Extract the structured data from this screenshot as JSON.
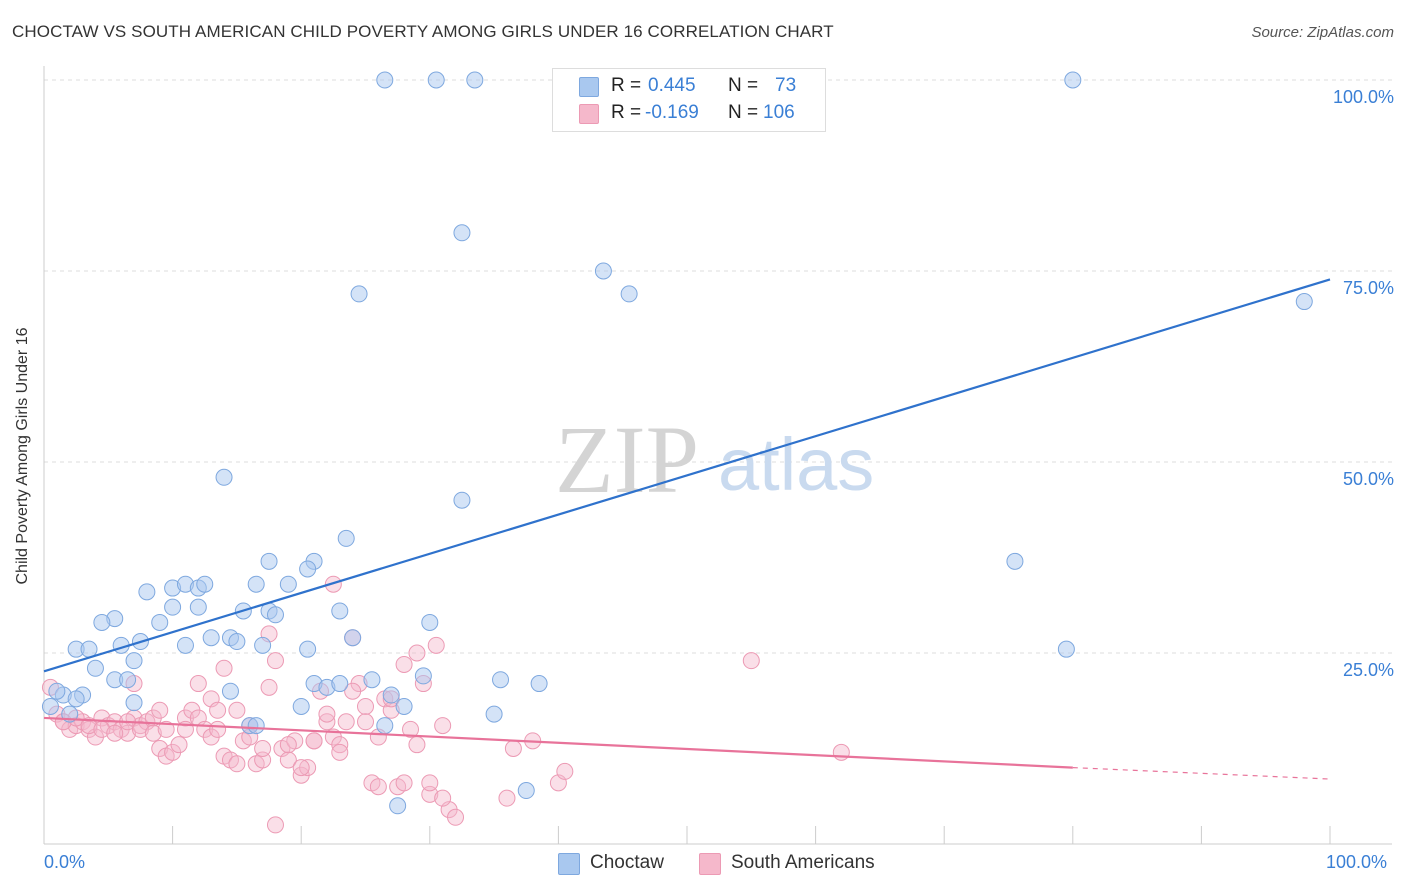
{
  "title": "CHOCTAW VS SOUTH AMERICAN CHILD POVERTY AMONG GIRLS UNDER 16 CORRELATION CHART",
  "source": "Source: ZipAtlas.com",
  "watermark": {
    "zip": "ZIP",
    "atlas": "atlas"
  },
  "colors": {
    "choctaw_fill": "#a9c8ef",
    "choctaw_stroke": "#7ea8df",
    "choctaw_line": "#2f72cc",
    "south_fill": "#f5b8cb",
    "south_stroke": "#ec9ab4",
    "south_line": "#e8739a",
    "tick_text": "#3a7fd5",
    "grid": "#dddddd"
  },
  "stats": [
    {
      "r_label": "R =",
      "r_value": "0.445",
      "n_label": "N =",
      "n_value": "73"
    },
    {
      "r_label": "R =",
      "r_value": "-0.169",
      "n_label": "N =",
      "n_value": "106"
    }
  ],
  "legend": [
    "Choctaw",
    "South Americans"
  ],
  "y_ticks": [
    "100.0%",
    "75.0%",
    "50.0%",
    "25.0%"
  ],
  "x_ticks": [
    "0.0%",
    "100.0%"
  ],
  "chart_data": {
    "type": "scatter",
    "title": "CHOCTAW VS SOUTH AMERICAN CHILD POVERTY AMONG GIRLS UNDER 16 CORRELATION CHART",
    "xlabel": "",
    "ylabel": "Child Poverty Among Girls Under 16",
    "xlim": [
      0,
      100
    ],
    "ylim": [
      0,
      100
    ],
    "grid": true,
    "legend_placement": "bottom",
    "series": [
      {
        "name": "Choctaw",
        "r": 0.445,
        "n": 73,
        "trendline": {
          "x": [
            0,
            100
          ],
          "y": [
            22.6,
            73.9
          ]
        },
        "points": [
          [
            26.5,
            100
          ],
          [
            30.5,
            100
          ],
          [
            33.5,
            100
          ],
          [
            80,
            100
          ],
          [
            32.5,
            80
          ],
          [
            43.5,
            75
          ],
          [
            45.5,
            72
          ],
          [
            24.5,
            72
          ],
          [
            98,
            71
          ],
          [
            14,
            48
          ],
          [
            32.5,
            45
          ],
          [
            23.5,
            40
          ],
          [
            75.5,
            37
          ],
          [
            17.5,
            37
          ],
          [
            21,
            37
          ],
          [
            20.5,
            36
          ],
          [
            8,
            33
          ],
          [
            10,
            33.5
          ],
          [
            11,
            34
          ],
          [
            12,
            33.5
          ],
          [
            12.5,
            34
          ],
          [
            16.5,
            34
          ],
          [
            19,
            34
          ],
          [
            10,
            31
          ],
          [
            12,
            31
          ],
          [
            15.5,
            30.5
          ],
          [
            17.5,
            30.5
          ],
          [
            23,
            30.5
          ],
          [
            18,
            30
          ],
          [
            5.5,
            29.5
          ],
          [
            4.5,
            29
          ],
          [
            9,
            29
          ],
          [
            30,
            29
          ],
          [
            13,
            27
          ],
          [
            14.5,
            27
          ],
          [
            7.5,
            26.5
          ],
          [
            6,
            26
          ],
          [
            17,
            26
          ],
          [
            2.5,
            25.5
          ],
          [
            3.5,
            25.5
          ],
          [
            11,
            26
          ],
          [
            15,
            26.5
          ],
          [
            20.5,
            25.5
          ],
          [
            24,
            27
          ],
          [
            79.5,
            25.5
          ],
          [
            7,
            24
          ],
          [
            4,
            23
          ],
          [
            5.5,
            21.5
          ],
          [
            6.5,
            21.5
          ],
          [
            3,
            19.5
          ],
          [
            1.5,
            19.5
          ],
          [
            2.5,
            19
          ],
          [
            14.5,
            20
          ],
          [
            7,
            18.5
          ],
          [
            21,
            21
          ],
          [
            22,
            20.5
          ],
          [
            25.5,
            21.5
          ],
          [
            27,
            19.5
          ],
          [
            29.5,
            22
          ],
          [
            35.5,
            21.5
          ],
          [
            38.5,
            21
          ],
          [
            20,
            18
          ],
          [
            28,
            18
          ],
          [
            26.5,
            15.5
          ],
          [
            35,
            17
          ],
          [
            16,
            15.5
          ],
          [
            0.5,
            18
          ],
          [
            1,
            20
          ],
          [
            37.5,
            7
          ],
          [
            27.5,
            5
          ],
          [
            23,
            21
          ],
          [
            16.5,
            15.5
          ],
          [
            2,
            17
          ]
        ]
      },
      {
        "name": "South Americans",
        "r": -0.169,
        "n": 106,
        "trendline": {
          "x": [
            0,
            80
          ],
          "y": [
            16.5,
            10.0
          ]
        },
        "trendline_dashed": {
          "x": [
            80,
            100
          ],
          "y": [
            10.0,
            8.5
          ]
        },
        "points": [
          [
            0.5,
            20.5
          ],
          [
            1,
            17
          ],
          [
            1.5,
            16
          ],
          [
            2,
            15
          ],
          [
            2.5,
            15.5
          ],
          [
            3,
            16
          ],
          [
            3.5,
            15
          ],
          [
            4,
            14
          ],
          [
            4.5,
            16.5
          ],
          [
            5,
            15.5
          ],
          [
            5.5,
            16
          ],
          [
            6,
            15
          ],
          [
            6.5,
            14.5
          ],
          [
            7,
            16.5
          ],
          [
            7.5,
            15.5
          ],
          [
            8,
            16
          ],
          [
            8.5,
            16.5
          ],
          [
            9,
            12.5
          ],
          [
            9.5,
            11.5
          ],
          [
            10,
            12
          ],
          [
            10.5,
            13
          ],
          [
            11,
            16.5
          ],
          [
            11.5,
            17.5
          ],
          [
            12,
            16.5
          ],
          [
            12.5,
            15
          ],
          [
            13,
            14
          ],
          [
            13.5,
            15
          ],
          [
            14,
            11.5
          ],
          [
            14.5,
            11
          ],
          [
            15,
            10.5
          ],
          [
            15.5,
            13.5
          ],
          [
            16,
            15.5
          ],
          [
            16.5,
            10.5
          ],
          [
            17,
            11
          ],
          [
            17.5,
            20.5
          ],
          [
            18,
            24
          ],
          [
            18.5,
            12.5
          ],
          [
            19,
            11
          ],
          [
            19.5,
            13.5
          ],
          [
            20,
            9
          ],
          [
            20.5,
            10
          ],
          [
            21,
            13.5
          ],
          [
            21.5,
            20
          ],
          [
            22,
            16
          ],
          [
            22.5,
            14
          ],
          [
            23,
            13
          ],
          [
            23.5,
            16
          ],
          [
            24,
            27
          ],
          [
            24.5,
            21
          ],
          [
            25,
            18
          ],
          [
            25.5,
            8
          ],
          [
            26,
            7.5
          ],
          [
            26.5,
            19
          ],
          [
            27,
            17.5
          ],
          [
            27.5,
            7.5
          ],
          [
            28,
            23.5
          ],
          [
            28.5,
            15
          ],
          [
            29,
            25
          ],
          [
            29.5,
            21
          ],
          [
            30,
            6.5
          ],
          [
            30.5,
            26
          ],
          [
            31,
            15.5
          ],
          [
            31.5,
            4.5
          ],
          [
            32,
            3.5
          ],
          [
            36,
            6
          ],
          [
            36.5,
            12.5
          ],
          [
            38,
            13.5
          ],
          [
            40,
            8
          ],
          [
            40.5,
            9.5
          ],
          [
            55,
            24
          ],
          [
            62,
            12
          ],
          [
            1.5,
            16
          ],
          [
            2.5,
            16.5
          ],
          [
            3.5,
            15.5
          ],
          [
            4.5,
            15
          ],
          [
            5.5,
            14.5
          ],
          [
            6.5,
            16
          ],
          [
            7.5,
            15
          ],
          [
            8.5,
            14.5
          ],
          [
            9.5,
            15
          ],
          [
            12,
            21
          ],
          [
            13,
            19
          ],
          [
            14,
            23
          ],
          [
            15,
            17.5
          ],
          [
            16,
            14
          ],
          [
            17,
            12.5
          ],
          [
            18,
            2.5
          ],
          [
            19,
            13
          ],
          [
            20,
            10
          ],
          [
            21,
            13.5
          ],
          [
            22,
            17
          ],
          [
            23,
            12
          ],
          [
            24,
            20
          ],
          [
            25,
            16
          ],
          [
            26,
            14
          ],
          [
            27,
            19
          ],
          [
            28,
            8
          ],
          [
            29,
            13
          ],
          [
            30,
            8
          ],
          [
            31,
            6
          ],
          [
            9,
            17.5
          ],
          [
            7,
            21
          ],
          [
            11,
            15
          ],
          [
            13.5,
            17.5
          ],
          [
            17.5,
            27.5
          ],
          [
            22.5,
            34
          ]
        ]
      }
    ]
  }
}
